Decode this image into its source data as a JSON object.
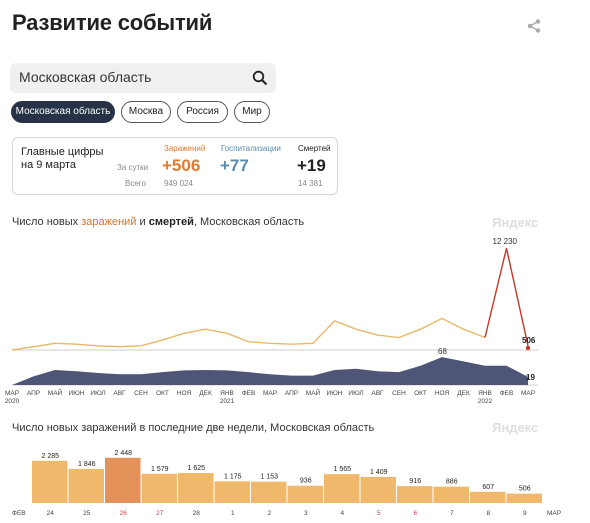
{
  "page": {
    "title": "Развитие событий"
  },
  "search": {
    "value": "Московская область"
  },
  "regions": [
    "Московская область",
    "Москва",
    "Россия",
    "Мир"
  ],
  "stats": {
    "heading": "Главные цифры на 9 марта",
    "per_day_label": "За сутки",
    "total_label": "Всего",
    "infections": {
      "label": "Заражений",
      "day": "+506",
      "total": "949 024",
      "color": "#e07b30"
    },
    "hospitalizations": {
      "label": "Госпитализации",
      "day": "+77",
      "color": "#5a8bb0"
    },
    "deaths": {
      "label": "Смертей",
      "day": "+19",
      "total": "14 381",
      "color": "#222222"
    }
  },
  "chart1": {
    "title_prefix": "Число новых ",
    "title_infections": "заражений",
    "title_middle": " и ",
    "title_deaths": "смертей",
    "title_suffix": ", Московская область",
    "watermark": "Яндекс",
    "peak_label": "12 230",
    "last_label": "506",
    "deaths_peak_label": "68",
    "deaths_last_label": "19",
    "month_labels": [
      "МАР",
      "АПР",
      "МАЙ",
      "ИЮН",
      "ИЮЛ",
      "АВГ",
      "СЕН",
      "ОКТ",
      "НОЯ",
      "ДЕК",
      "ЯНВ",
      "ФЕВ",
      "МАР",
      "АПР",
      "МАЙ",
      "ИЮН",
      "ИЮЛ",
      "АВГ",
      "СЕН",
      "ОКТ",
      "НОЯ",
      "ДЕК",
      "ЯНВ",
      "ФЕВ",
      "МАР"
    ],
    "year_labels": [
      "2020",
      "2021",
      "2022"
    ]
  },
  "chart_data": [
    {
      "type": "line",
      "title": "Число новых заражений и смертей, Московская область",
      "series": [
        {
          "name": "заражений",
          "color": "#e8b86a",
          "x": [
            "2020-03",
            "2020-04",
            "2020-05",
            "2020-06",
            "2020-07",
            "2020-08",
            "2020-09",
            "2020-10",
            "2020-11",
            "2020-12",
            "2021-01",
            "2021-02",
            "2021-03",
            "2021-04",
            "2021-05",
            "2021-06",
            "2021-07",
            "2021-08",
            "2021-09",
            "2021-10",
            "2021-11",
            "2021-12",
            "2022-01",
            "2022-02",
            "2022-03"
          ],
          "values": [
            0,
            400,
            800,
            700,
            500,
            400,
            500,
            1200,
            2000,
            2500,
            2000,
            1000,
            800,
            700,
            800,
            3500,
            2500,
            1800,
            1500,
            2500,
            3800,
            2500,
            1500,
            12230,
            506
          ]
        },
        {
          "name": "смертей",
          "color": "#4f5577",
          "x": [
            "2020-03",
            "2020-04",
            "2020-05",
            "2020-06",
            "2020-07",
            "2020-08",
            "2020-09",
            "2020-10",
            "2020-11",
            "2020-12",
            "2021-01",
            "2021-02",
            "2021-03",
            "2021-04",
            "2021-05",
            "2021-06",
            "2021-07",
            "2021-08",
            "2021-09",
            "2021-10",
            "2021-11",
            "2021-12",
            "2022-01",
            "2022-02",
            "2022-03"
          ],
          "values": [
            0,
            20,
            35,
            32,
            28,
            25,
            25,
            30,
            34,
            35,
            34,
            30,
            25,
            22,
            22,
            35,
            38,
            32,
            30,
            45,
            65,
            55,
            45,
            45,
            19
          ]
        }
      ]
    },
    {
      "type": "bar",
      "title": "Число новых заражений в последние две недели, Московская область",
      "categories": [
        "24",
        "25",
        "26",
        "27",
        "28",
        "1",
        "2",
        "3",
        "4",
        "5",
        "6",
        "7",
        "8",
        "9"
      ],
      "values": [
        2285,
        1846,
        2448,
        1579,
        1625,
        1175,
        1153,
        936,
        1565,
        1409,
        916,
        886,
        607,
        506
      ],
      "value_labels": [
        "2 285",
        "1 846",
        "2 448",
        "1 579",
        "1 625",
        "1 175",
        "1 153",
        "936",
        "1 565",
        "1 409",
        "916",
        "886",
        "607",
        "506"
      ],
      "highlight_index": 2,
      "red_label_indices": [
        2,
        3,
        9,
        10
      ],
      "month_before": "ФЕВ",
      "month_after": "МАР",
      "colors": {
        "bar": "#f0b86b",
        "highlight": "#e5915a",
        "red_label": "#d23c3c"
      }
    }
  ],
  "chart2": {
    "title": "Число новых заражений в последние две недели, Московская область",
    "watermark": "Яндекс"
  }
}
